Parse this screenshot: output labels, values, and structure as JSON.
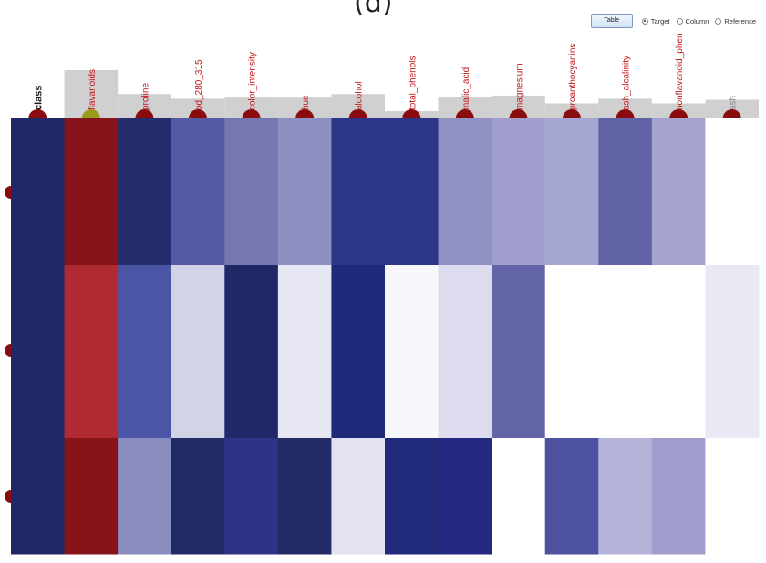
{
  "panel_label": "(d)",
  "toolbar": {
    "table_label": "Table",
    "options": [
      {
        "label": "Target",
        "checked": true
      },
      {
        "label": "Column",
        "checked": false
      },
      {
        "label": "Reference",
        "checked": false
      }
    ]
  },
  "colors": {
    "marker": "#8b0c0f",
    "marker_selected": "#9a9a1c",
    "bar_fill": "#d0d0d0",
    "column_label": "#c0161b",
    "class_label": "#1a1a1a",
    "reference_label": "#8a8a8a"
  },
  "chart_data": {
    "type": "heatmap",
    "title": "",
    "xlabel": "",
    "ylabel": "",
    "columns": [
      {
        "name": "class",
        "bar": 0.0,
        "marker": "dark",
        "label_style": "class"
      },
      {
        "name": "flavanoids",
        "bar": 0.93,
        "marker": "selected",
        "label_style": "normal"
      },
      {
        "name": "proline",
        "bar": 0.47,
        "marker": "dark",
        "label_style": "normal"
      },
      {
        "name": "od_280_315",
        "bar": 0.38,
        "marker": "dark",
        "label_style": "normal"
      },
      {
        "name": "color_intensity",
        "bar": 0.42,
        "marker": "dark",
        "label_style": "normal"
      },
      {
        "name": "hue",
        "bar": 0.4,
        "marker": "dark",
        "label_style": "normal"
      },
      {
        "name": "alcohol",
        "bar": 0.47,
        "marker": "dark",
        "label_style": "normal"
      },
      {
        "name": "total_phenols",
        "bar": 0.14,
        "marker": "dark",
        "label_style": "normal"
      },
      {
        "name": "malic_acid",
        "bar": 0.42,
        "marker": "dark",
        "label_style": "normal"
      },
      {
        "name": "magnesium",
        "bar": 0.44,
        "marker": "dark",
        "label_style": "normal"
      },
      {
        "name": "proanthocyanins",
        "bar": 0.29,
        "marker": "dark",
        "label_style": "normal"
      },
      {
        "name": "ash_alcalinity",
        "bar": 0.38,
        "marker": "dark",
        "label_style": "normal"
      },
      {
        "name": "nonflavanoid_phen",
        "bar": 0.29,
        "marker": "dark",
        "label_style": "normal"
      },
      {
        "name": "ash",
        "bar": 0.36,
        "marker": "dark",
        "label_style": "reference"
      }
    ],
    "rows": [
      {
        "marker": "dark",
        "cells": [
          "#202868",
          "#86141b",
          "#232c6c",
          "#545aa4",
          "#7676b0",
          "#8f90c2",
          "#2c3587",
          "#2c3587",
          "#9291c4",
          "#a09fce",
          "#a6a6d2",
          "#6262a6",
          "#a4a3d0",
          "#ffffff"
        ]
      },
      {
        "marker": "dark",
        "cells": [
          "#202868",
          "#b02a31",
          "#4b55a6",
          "#d3d3e7",
          "#202868",
          "#e7e7f3",
          "#202a7a",
          "#f7f7fc",
          "#dcdcee",
          "#6464a8",
          "#ffffff",
          "#ffffff",
          "#ffffff",
          "#e9e9f4"
        ]
      },
      {
        "marker": "dark",
        "cells": [
          "#202868",
          "#861419",
          "#8b8cc0",
          "#232b66",
          "#2e3385",
          "#232b66",
          "#e2e2f1",
          "#222a7c",
          "#242a82",
          "#ffffff",
          "#4d52a0",
          "#b4b3d9",
          "#9e9dcc",
          "#ffffff"
        ]
      }
    ]
  }
}
